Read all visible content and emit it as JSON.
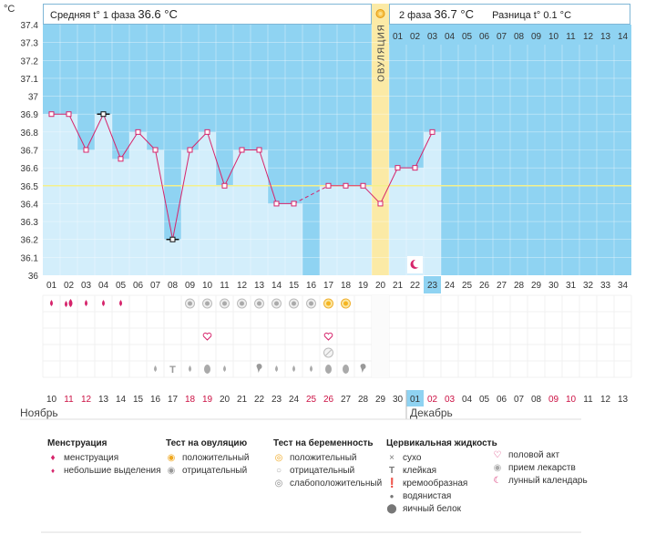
{
  "header": {
    "unit": "°C",
    "phase1_label": "Средняя t° 1 фаза",
    "phase1_value": "36.6 °C",
    "phase2_label": "2 фаза",
    "phase2_value": "36.7 °C",
    "diff_label": "Разница t°",
    "diff_value": "0.1 °C",
    "ovulation_label": "ОВУЛЯЦИЯ"
  },
  "months": {
    "left": "Ноябрь",
    "right": "Декабрь"
  },
  "colors": {
    "plot_bg": "#8fd3f2",
    "column_fill": "#d3eefb",
    "ovulation": "#fbeaa6",
    "line": "#d6246b",
    "grid": "#ffffff",
    "coverline": "#f4f08c",
    "highlight": "#8fd3f2",
    "red_date": "#cc1144"
  },
  "chart_data": {
    "type": "line",
    "ylabel": "°C",
    "ylim": [
      36.0,
      37.4
    ],
    "yticks": [
      "36",
      "36.1",
      "36.2",
      "36.3",
      "36.4",
      "36.5",
      "36.6",
      "36.7",
      "36.8",
      "36.9",
      "37",
      "37.1",
      "37.2",
      "37.3",
      "37.4"
    ],
    "coverline": 36.5,
    "cycle_days": [
      "01",
      "02",
      "03",
      "04",
      "05",
      "06",
      "07",
      "08",
      "09",
      "10",
      "11",
      "12",
      "13",
      "14",
      "15",
      "16",
      "17",
      "18",
      "19",
      "20",
      "21",
      "22",
      "23",
      "24",
      "25",
      "26",
      "27",
      "28",
      "29",
      "30",
      "31",
      "32",
      "33",
      "34"
    ],
    "after_ovulation_days": [
      "01",
      "02",
      "03",
      "04",
      "05",
      "06",
      "07",
      "08",
      "09",
      "10",
      "11",
      "12",
      "13",
      "14"
    ],
    "current_day": "23",
    "ovulation_day": 20,
    "temperatures": [
      {
        "day": 1,
        "temp": 36.9
      },
      {
        "day": 2,
        "temp": 36.9
      },
      {
        "day": 3,
        "temp": 36.7
      },
      {
        "day": 4,
        "temp": 36.9,
        "excluded": true
      },
      {
        "day": 5,
        "temp": 36.65
      },
      {
        "day": 6,
        "temp": 36.8
      },
      {
        "day": 7,
        "temp": 36.7
      },
      {
        "day": 8,
        "temp": 36.2,
        "excluded": true
      },
      {
        "day": 9,
        "temp": 36.7
      },
      {
        "day": 10,
        "temp": 36.8
      },
      {
        "day": 11,
        "temp": 36.5
      },
      {
        "day": 12,
        "temp": 36.7
      },
      {
        "day": 13,
        "temp": 36.7
      },
      {
        "day": 14,
        "temp": 36.4
      },
      {
        "day": 15,
        "temp": 36.4
      },
      {
        "day": 17,
        "temp": 36.5
      },
      {
        "day": 18,
        "temp": 36.5
      },
      {
        "day": 19,
        "temp": 36.5
      },
      {
        "day": 20,
        "temp": 36.4
      },
      {
        "day": 21,
        "temp": 36.6
      },
      {
        "day": 22,
        "temp": 36.6
      },
      {
        "day": 23,
        "temp": 36.8
      }
    ],
    "dashed_gap": [
      15,
      17
    ],
    "calendar_dates": [
      "10",
      "11",
      "12",
      "13",
      "14",
      "15",
      "16",
      "17",
      "18",
      "19",
      "20",
      "21",
      "22",
      "23",
      "24",
      "25",
      "26",
      "27",
      "28",
      "29",
      "30",
      "01",
      "02",
      "03",
      "04",
      "05",
      "06",
      "07",
      "08",
      "09",
      "10",
      "11",
      "12",
      "13"
    ],
    "calendar_red": [
      2,
      3,
      9,
      10,
      16,
      17,
      23,
      24,
      30,
      31
    ],
    "calendar_current": 22,
    "events": {
      "menstruation": [
        {
          "day": 1,
          "kind": "light"
        },
        {
          "day": 2,
          "kind": "heavy"
        },
        {
          "day": 3,
          "kind": "light"
        },
        {
          "day": 4,
          "kind": "light"
        },
        {
          "day": 5,
          "kind": "light"
        }
      ],
      "ovulation_test": [
        {
          "day": 9,
          "result": "negative"
        },
        {
          "day": 10,
          "result": "negative"
        },
        {
          "day": 11,
          "result": "negative"
        },
        {
          "day": 12,
          "result": "negative"
        },
        {
          "day": 13,
          "result": "negative"
        },
        {
          "day": 14,
          "result": "negative"
        },
        {
          "day": 15,
          "result": "negative"
        },
        {
          "day": 16,
          "result": "negative"
        },
        {
          "day": 17,
          "result": "positive"
        },
        {
          "day": 18,
          "result": "positive"
        }
      ],
      "intercourse": [
        10,
        17
      ],
      "medication": [
        17
      ],
      "cervical": [
        {
          "day": 7,
          "kind": "watery"
        },
        {
          "day": 8,
          "kind": "sticky"
        },
        {
          "day": 9,
          "kind": "watery"
        },
        {
          "day": 10,
          "kind": "eggwhite"
        },
        {
          "day": 11,
          "kind": "watery"
        },
        {
          "day": 13,
          "kind": "creamy"
        },
        {
          "day": 14,
          "kind": "watery"
        },
        {
          "day": 15,
          "kind": "watery"
        },
        {
          "day": 16,
          "kind": "watery"
        },
        {
          "day": 17,
          "kind": "eggwhite"
        },
        {
          "day": 18,
          "kind": "eggwhite"
        },
        {
          "day": 19,
          "kind": "creamy"
        }
      ],
      "lunar": [
        22
      ]
    }
  },
  "legend": {
    "menstruation": {
      "title": "Менструация",
      "items": [
        {
          "icon": "heavy-drop-icon",
          "label": "менструация"
        },
        {
          "icon": "light-drop-icon",
          "label": "небольшие выделения"
        }
      ]
    },
    "ovulation_test": {
      "title": "Тест на овуляцию",
      "items": [
        {
          "icon": "positive-circle-icon",
          "label": "положительный"
        },
        {
          "icon": "negative-circle-icon",
          "label": "отрицательный"
        }
      ]
    },
    "pregnancy_test": {
      "title": "Тест на беременность",
      "items": [
        {
          "icon": "positive-circle-icon",
          "label": "положительный"
        },
        {
          "icon": "negative-circle-icon",
          "label": "отрицательный"
        },
        {
          "icon": "weak-circle-icon",
          "label": "слабоположительный"
        }
      ]
    },
    "cervical": {
      "title": "Цервикальная жидкость",
      "items": [
        {
          "icon": "dry-icon",
          "label": "сухо"
        },
        {
          "icon": "sticky-icon",
          "label": "клейкая"
        },
        {
          "icon": "creamy-icon",
          "label": "кремообразная"
        },
        {
          "icon": "watery-icon",
          "label": "водянистая"
        },
        {
          "icon": "eggwhite-icon",
          "label": "яичный белок"
        }
      ]
    },
    "other": {
      "title": "",
      "items": [
        {
          "icon": "heart-icon",
          "label": "половой акт"
        },
        {
          "icon": "pill-icon",
          "label": "прием лекарств"
        },
        {
          "icon": "moon-icon",
          "label": "лунный календарь"
        }
      ]
    }
  }
}
